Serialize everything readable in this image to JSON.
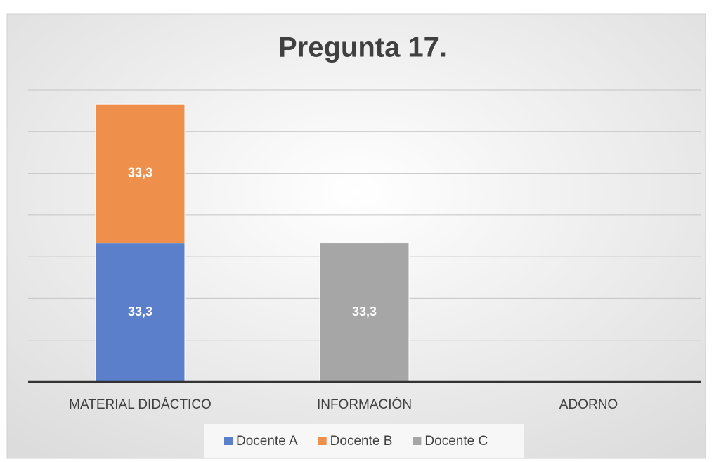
{
  "chart_data": {
    "type": "stacked_bar",
    "title": "Pregunta 17.",
    "categories": [
      "MATERIAL DIDÁCTICO",
      "INFORMACIÓN",
      "ADORNO"
    ],
    "series": [
      {
        "name": "Docente A",
        "color": "#5b7fcb",
        "values": [
          33.3,
          null,
          null
        ],
        "value_labels": [
          "33,3",
          null,
          null
        ]
      },
      {
        "name": "Docente B",
        "color": "#ee8f4c",
        "values": [
          33.3,
          null,
          null
        ],
        "value_labels": [
          "33,3",
          null,
          null
        ]
      },
      {
        "name": "Docente C",
        "color": "#a6a6a6",
        "values": [
          null,
          33.3,
          null
        ],
        "value_labels": [
          null,
          "33,3",
          null
        ]
      }
    ],
    "ylim": [
      0,
      70
    ],
    "yticks": [
      0,
      10,
      20,
      30,
      40,
      50,
      60,
      70
    ],
    "grid": true,
    "legend": "bottom"
  }
}
